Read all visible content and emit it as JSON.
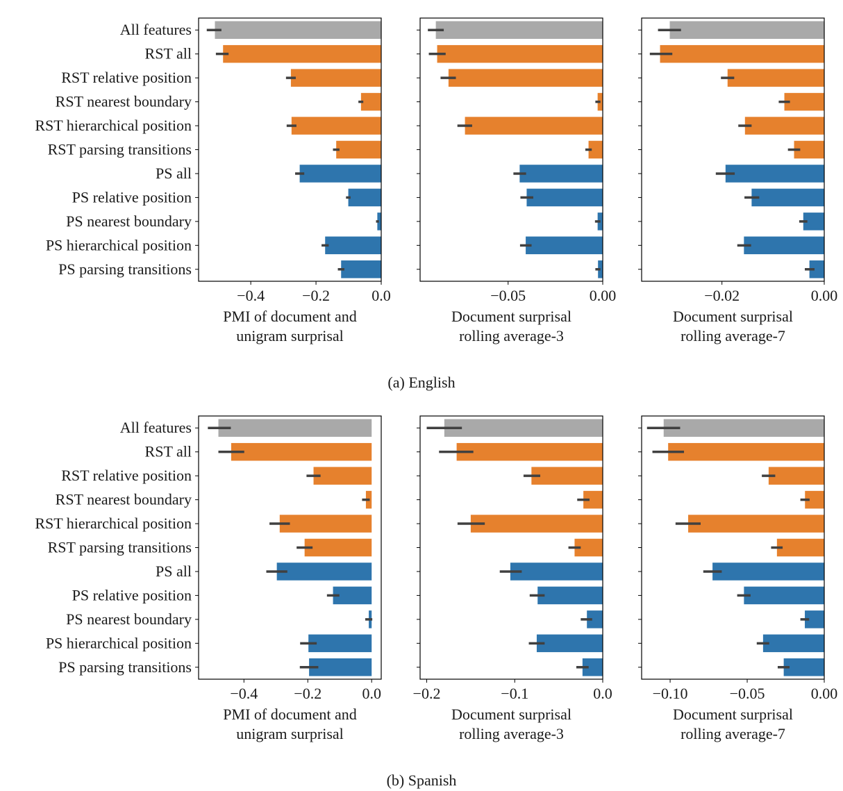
{
  "features": [
    "All features",
    "RST all",
    "RST relative position",
    "RST nearest boundary",
    "RST hierarchical position",
    "RST parsing transitions",
    "PS all",
    "PS relative position",
    "PS nearest boundary",
    "PS hierarchical position",
    "PS parsing transitions"
  ],
  "colors": {
    "all": "#a9a9a9",
    "rst": "#e6812d",
    "ps": "#2e75ad",
    "errorbar": "#404040"
  },
  "feature_groups": [
    "all",
    "rst",
    "rst",
    "rst",
    "rst",
    "rst",
    "ps",
    "ps",
    "ps",
    "ps",
    "ps"
  ],
  "chart_data": [
    {
      "type": "bar",
      "orientation": "horizontal",
      "figure": "a",
      "panel": 0,
      "xlabel": [
        "PMI of document and",
        "unigram surprisal"
      ],
      "xlim": [
        -0.56,
        0.0
      ],
      "xticks": [
        -0.4,
        -0.2,
        0.0
      ],
      "xtick_labels": [
        "−0.4",
        "−0.2",
        "0.0"
      ],
      "values": [
        -0.51,
        -0.485,
        -0.277,
        -0.062,
        -0.275,
        -0.138,
        -0.25,
        -0.101,
        -0.012,
        -0.172,
        -0.123
      ],
      "err": [
        [
          -0.535,
          -0.49
        ],
        [
          -0.507,
          -0.468
        ],
        [
          -0.292,
          -0.262
        ],
        [
          -0.07,
          -0.055
        ],
        [
          -0.29,
          -0.26
        ],
        [
          -0.148,
          -0.128
        ],
        [
          -0.264,
          -0.236
        ],
        [
          -0.108,
          -0.094
        ],
        [
          -0.016,
          -0.007
        ],
        [
          -0.183,
          -0.161
        ],
        [
          -0.133,
          -0.113
        ]
      ]
    },
    {
      "type": "bar",
      "orientation": "horizontal",
      "figure": "a",
      "panel": 1,
      "xlabel": [
        "Document surprisal",
        "rolling average-3"
      ],
      "xlim": [
        -0.0965,
        0.0
      ],
      "xticks": [
        -0.05,
        0.0
      ],
      "xtick_labels": [
        "−0.05",
        "0.00"
      ],
      "values": [
        -0.0882,
        -0.0875,
        -0.0815,
        -0.0027,
        -0.0728,
        -0.0075,
        -0.0439,
        -0.0402,
        -0.0027,
        -0.0407,
        -0.0025
      ],
      "err": [
        [
          -0.0924,
          -0.084
        ],
        [
          -0.0919,
          -0.083
        ],
        [
          -0.0857,
          -0.0776
        ],
        [
          -0.0039,
          -0.0012
        ],
        [
          -0.0768,
          -0.069
        ],
        [
          -0.0092,
          -0.0058
        ],
        [
          -0.0472,
          -0.0405
        ],
        [
          -0.0435,
          -0.0367
        ],
        [
          -0.0041,
          -0.0012
        ],
        [
          -0.0437,
          -0.0376
        ],
        [
          -0.0039,
          -0.0012
        ]
      ]
    },
    {
      "type": "bar",
      "orientation": "horizontal",
      "figure": "a",
      "panel": 2,
      "xlabel": [
        "Document surprisal",
        "rolling average-7"
      ],
      "xlim": [
        -0.0357,
        0.0
      ],
      "xticks": [
        -0.02,
        0.0
      ],
      "xtick_labels": [
        "−0.02",
        "0.00"
      ],
      "values": [
        -0.0302,
        -0.0321,
        -0.0189,
        -0.0078,
        -0.0155,
        -0.0059,
        -0.0193,
        -0.0142,
        -0.0041,
        -0.0157,
        -0.0029
      ],
      "err": [
        [
          -0.0325,
          -0.028
        ],
        [
          -0.0341,
          -0.0297
        ],
        [
          -0.0202,
          -0.0176
        ],
        [
          -0.0089,
          -0.0067
        ],
        [
          -0.0168,
          -0.0142
        ],
        [
          -0.0071,
          -0.0047
        ],
        [
          -0.0212,
          -0.0175
        ],
        [
          -0.0156,
          -0.0127
        ],
        [
          -0.0049,
          -0.0033
        ],
        [
          -0.017,
          -0.0143
        ],
        [
          -0.0038,
          -0.0019
        ]
      ]
    },
    {
      "type": "bar",
      "orientation": "horizontal",
      "figure": "b",
      "panel": 0,
      "xlabel": [
        "PMI of document and",
        "unigram surprisal"
      ],
      "xlim": [
        -0.542,
        0.03
      ],
      "xticks": [
        -0.4,
        -0.2,
        0.0
      ],
      "xtick_labels": [
        "−0.4",
        "−0.2",
        "0.0"
      ],
      "values": [
        -0.48,
        -0.44,
        -0.182,
        -0.018,
        -0.288,
        -0.21,
        -0.297,
        -0.121,
        -0.009,
        -0.198,
        -0.196
      ],
      "err": [
        [
          -0.513,
          -0.441
        ],
        [
          -0.48,
          -0.399
        ],
        [
          -0.204,
          -0.16
        ],
        [
          -0.03,
          -0.006
        ],
        [
          -0.32,
          -0.256
        ],
        [
          -0.235,
          -0.185
        ],
        [
          -0.33,
          -0.264
        ],
        [
          -0.14,
          -0.101
        ],
        [
          -0.02,
          0.002
        ],
        [
          -0.224,
          -0.172
        ],
        [
          -0.225,
          -0.167
        ]
      ]
    },
    {
      "type": "bar",
      "orientation": "horizontal",
      "figure": "b",
      "panel": 1,
      "xlabel": [
        "Document surprisal",
        "rolling average-3"
      ],
      "xlim": [
        -0.2075,
        0.0
      ],
      "xticks": [
        -0.2,
        -0.1,
        0.0
      ],
      "xtick_labels": [
        "−0.2",
        "−0.1",
        "0.0"
      ],
      "values": [
        -0.18,
        -0.166,
        -0.081,
        -0.022,
        -0.15,
        -0.032,
        -0.105,
        -0.074,
        -0.018,
        -0.075,
        -0.023
      ],
      "err": [
        [
          -0.2,
          -0.16
        ],
        [
          -0.186,
          -0.147
        ],
        [
          -0.09,
          -0.071
        ],
        [
          -0.029,
          -0.015
        ],
        [
          -0.165,
          -0.134
        ],
        [
          -0.039,
          -0.025
        ],
        [
          -0.117,
          -0.092
        ],
        [
          -0.083,
          -0.066
        ],
        [
          -0.025,
          -0.012
        ],
        [
          -0.084,
          -0.066
        ],
        [
          -0.03,
          -0.016
        ]
      ]
    },
    {
      "type": "bar",
      "orientation": "horizontal",
      "figure": "b",
      "panel": 2,
      "xlabel": [
        "Document surprisal",
        "rolling average-7"
      ],
      "xlim": [
        -0.1185,
        0.0
      ],
      "xticks": [
        -0.1,
        -0.05,
        0.0
      ],
      "xtick_labels": [
        "−0.10",
        "−0.05",
        "0.00"
      ],
      "values": [
        -0.1042,
        -0.1013,
        -0.0361,
        -0.0125,
        -0.0883,
        -0.0307,
        -0.0725,
        -0.0521,
        -0.0126,
        -0.0397,
        -0.0263
      ],
      "err": [
        [
          -0.115,
          -0.0935
        ],
        [
          -0.1115,
          -0.091
        ],
        [
          -0.0405,
          -0.0318
        ],
        [
          -0.0155,
          -0.0095
        ],
        [
          -0.0965,
          -0.0802
        ],
        [
          -0.0345,
          -0.027
        ],
        [
          -0.0785,
          -0.0665
        ],
        [
          -0.0565,
          -0.0478
        ],
        [
          -0.0155,
          -0.0098
        ],
        [
          -0.0438,
          -0.0357
        ],
        [
          -0.0302,
          -0.0225
        ]
      ]
    }
  ],
  "captions": {
    "a": "(a) English",
    "b": "(b) Spanish"
  }
}
